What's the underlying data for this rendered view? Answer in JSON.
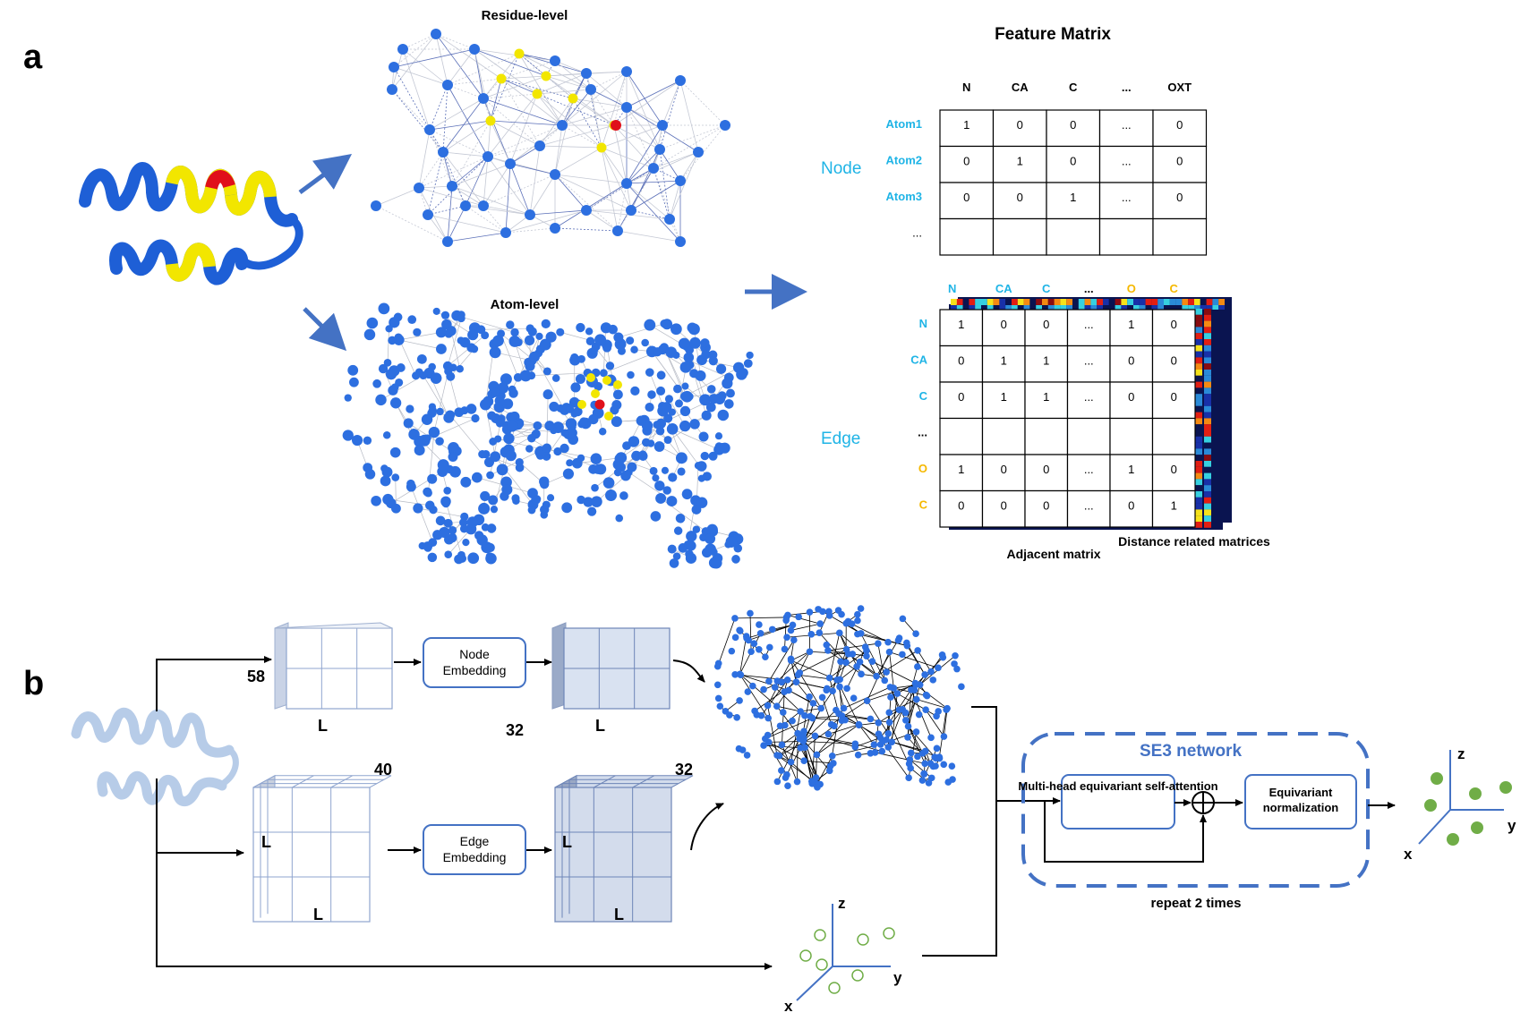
{
  "colors": {
    "node_blue": "#2d6fe0",
    "highlight_yellow": "#f2e600",
    "highlight_red": "#e0101a",
    "label_cyan": "#1fb4e6",
    "label_orange": "#f5b800",
    "accent_blue": "#4472c4",
    "cube_front": "#dbe4f2",
    "cube_dark": "#b9c6dd",
    "point_green": "#70ad47",
    "heat_dark": "#0a1450"
  },
  "panel_a": {
    "label": "a",
    "residue_title": "Residue-level",
    "atom_title": "Atom-level",
    "feature_title": "Feature Matrix",
    "node_label": "Node",
    "edge_label": "Edge",
    "node_matrix": {
      "columns": [
        "N",
        "CA",
        "C",
        "...",
        "OXT"
      ],
      "rows": [
        {
          "label": "Atom1",
          "cells": [
            "1",
            "0",
            "0",
            "...",
            "0"
          ]
        },
        {
          "label": "Atom2",
          "cells": [
            "0",
            "1",
            "0",
            "...",
            "0"
          ]
        },
        {
          "label": "Atom3",
          "cells": [
            "0",
            "0",
            "1",
            "...",
            "0"
          ]
        },
        {
          "label": "...",
          "cells": [
            "",
            "",
            "",
            "",
            ""
          ]
        }
      ]
    },
    "edge_matrix": {
      "columns": [
        "N",
        "CA",
        "C",
        "...",
        "O",
        "C"
      ],
      "rows": [
        {
          "label": "N",
          "cells": [
            "1",
            "0",
            "0",
            "...",
            "1",
            "0"
          ]
        },
        {
          "label": "CA",
          "cells": [
            "0",
            "1",
            "1",
            "...",
            "0",
            "0"
          ]
        },
        {
          "label": "C",
          "cells": [
            "0",
            "1",
            "1",
            "...",
            "0",
            "0"
          ]
        },
        {
          "label": "...",
          "cells": [
            "",
            "",
            "",
            "",
            "",
            ""
          ]
        },
        {
          "label": "O",
          "cells": [
            "1",
            "0",
            "0",
            "...",
            "1",
            "0"
          ]
        },
        {
          "label": "C",
          "cells": [
            "0",
            "0",
            "0",
            "...",
            "0",
            "1"
          ]
        }
      ],
      "adjacent_caption": "Adjacent matrix",
      "distance_caption": "Distance related matrices"
    }
  },
  "panel_b": {
    "label": "b",
    "node_in_dim": "58",
    "node_in_L": "L",
    "node_embed_label": "Node Embedding",
    "node_out_dim": "32",
    "node_out_L": "L",
    "edge_in_dim": "40",
    "edge_in_L_side": "L",
    "edge_in_L_bottom": "L",
    "edge_embed_label": "Edge Embedding",
    "edge_out_dim": "32",
    "edge_out_L_side": "L",
    "edge_out_L_bottom": "L",
    "se3_title": "SE3 network",
    "attention_label": "Multi-head equivariant self-attention",
    "norm_label": "Equivariant normalization",
    "repeat_label": "repeat 2 times",
    "axes_in": {
      "x": "x",
      "y": "y",
      "z": "z"
    },
    "axes_out": {
      "x": "x",
      "y": "y",
      "z": "z"
    }
  }
}
